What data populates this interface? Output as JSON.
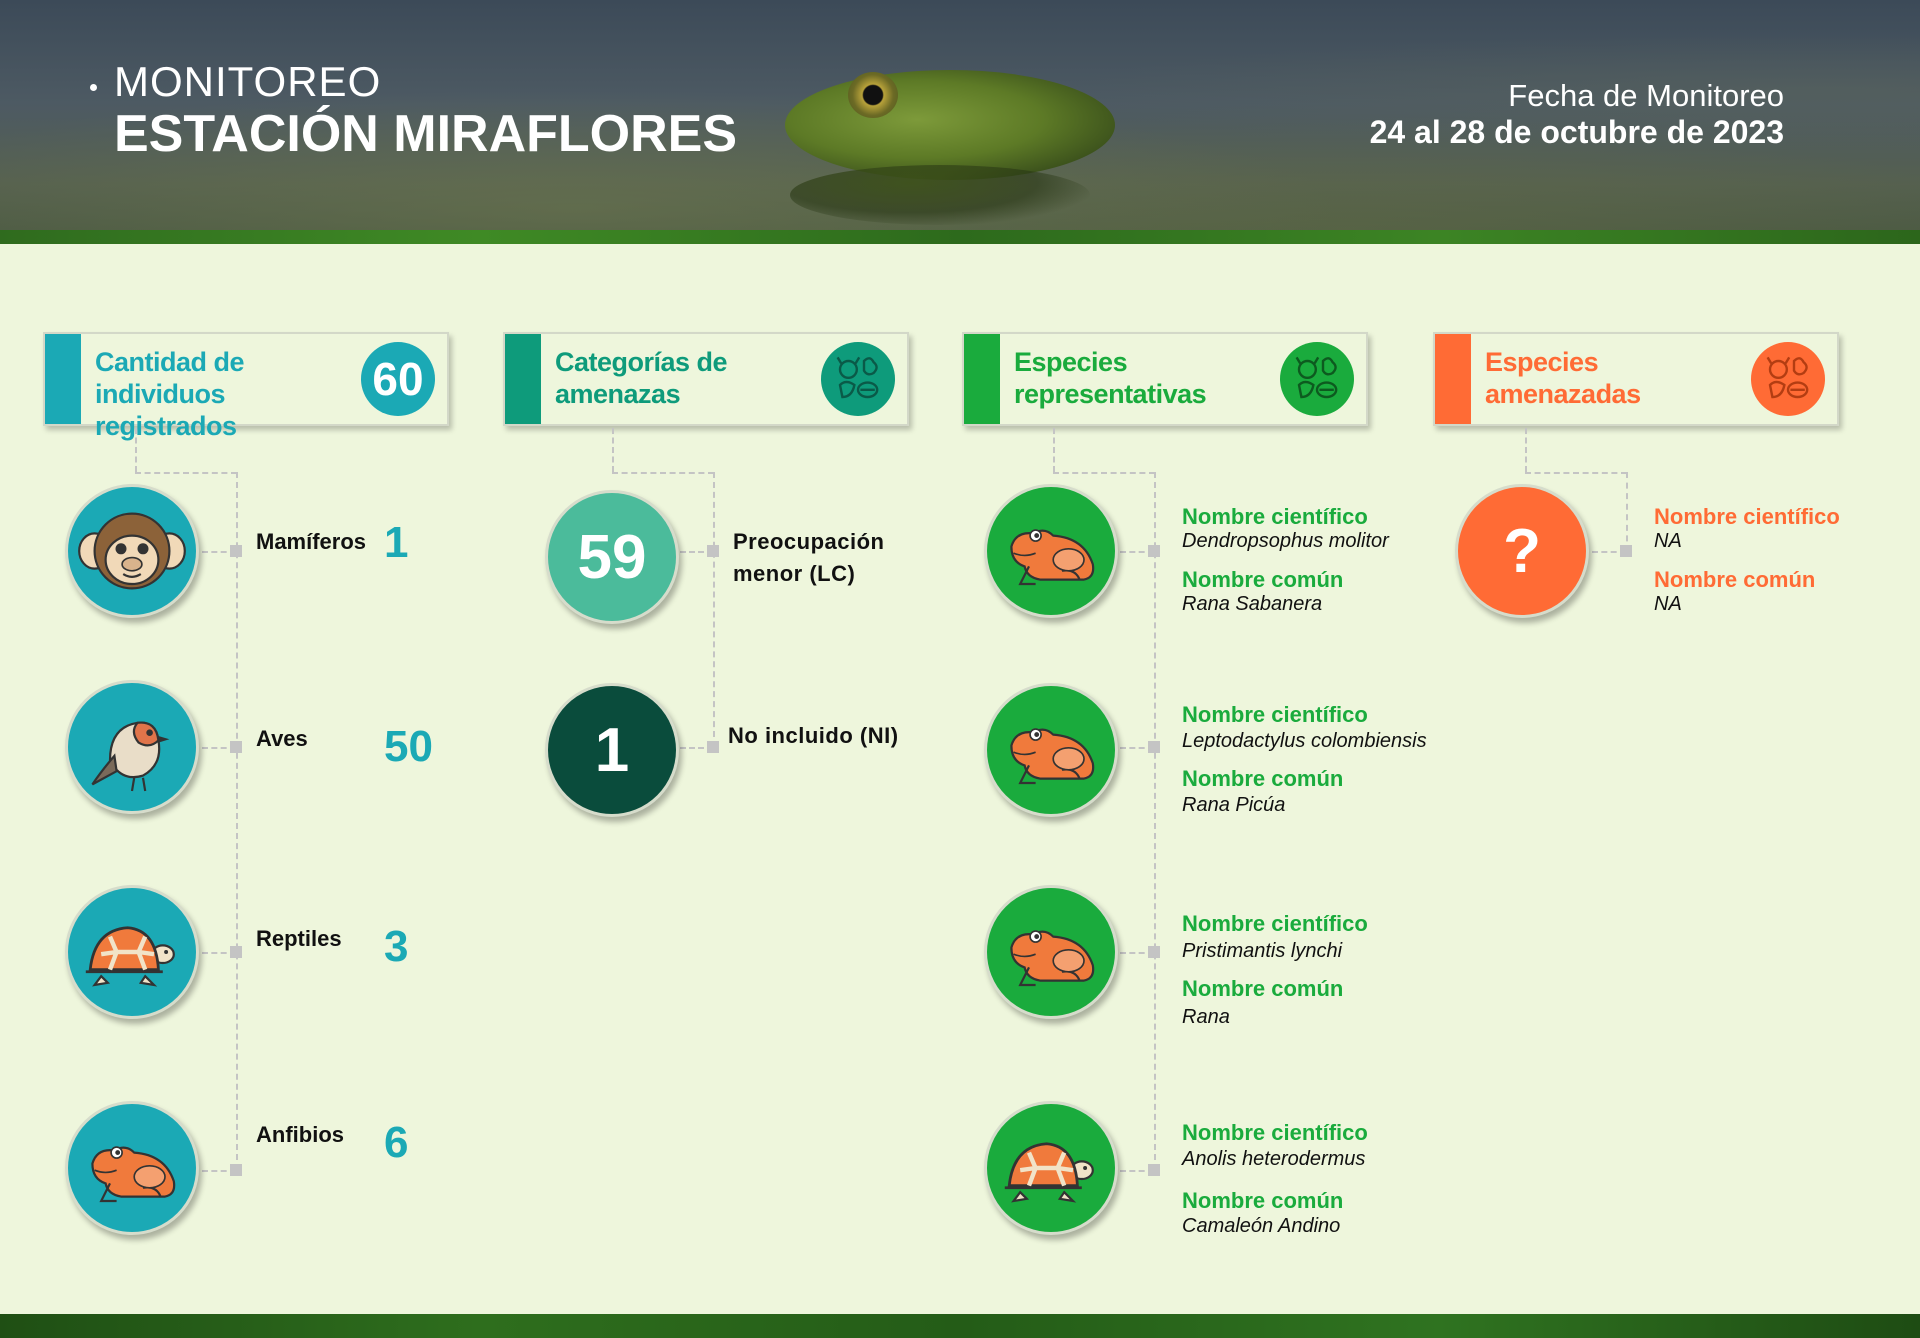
{
  "header": {
    "title_small": "MONITOREO",
    "title_big": "ESTACIÓN MIRAFLORES",
    "date_label": "Fecha de Monitoreo",
    "date_value": "24 al 28 de octubre de 2023"
  },
  "colors": {
    "teal": "#1ba9b5",
    "dark_teal": "#0e9b7b",
    "green": "#1aab3d",
    "orange": "#ff6b35",
    "lc_green": "#4bbb9b",
    "ni_dark": "#0a4c3c"
  },
  "columns": {
    "individuals": {
      "label": "Cantidad de individuos registrados",
      "total": "60",
      "items": [
        {
          "label": "Mamíferos",
          "value": "1",
          "icon": "monkey-icon"
        },
        {
          "label": "Aves",
          "value": "50",
          "icon": "bird-icon"
        },
        {
          "label": "Reptiles",
          "value": "3",
          "icon": "turtle-icon"
        },
        {
          "label": "Anfibios",
          "value": "6",
          "icon": "frog-icon"
        }
      ]
    },
    "threats": {
      "label": "Categorías de amenazas",
      "icon": "animals-icon",
      "items": [
        {
          "value": "59",
          "label_line1": "Preocupación",
          "label_line2": "menor (LC)"
        },
        {
          "value": "1",
          "label_line1": "No incluido (NI)",
          "label_line2": ""
        }
      ]
    },
    "representative": {
      "label": "Especies representativas",
      "icon": "animals-icon",
      "scientific_label": "Nombre científico",
      "common_label": "Nombre común",
      "items": [
        {
          "scientific": "Dendropsophus molitor",
          "common": "Rana Sabanera",
          "icon": "frog-icon"
        },
        {
          "scientific": "Leptodactylus colombiensis",
          "common": "Rana Picúa",
          "icon": "frog-icon"
        },
        {
          "scientific": "Pristimantis lynchi",
          "common": "Rana",
          "icon": "frog-icon"
        },
        {
          "scientific": "Anolis heterodermus",
          "common": "Camaleón Andino",
          "icon": "turtle-icon"
        }
      ]
    },
    "endangered": {
      "label": "Especies amenazadas",
      "icon": "animals-icon",
      "symbol": "?",
      "scientific_label": "Nombre científico",
      "scientific": "NA",
      "common_label": "Nombre común",
      "common": "NA"
    }
  }
}
